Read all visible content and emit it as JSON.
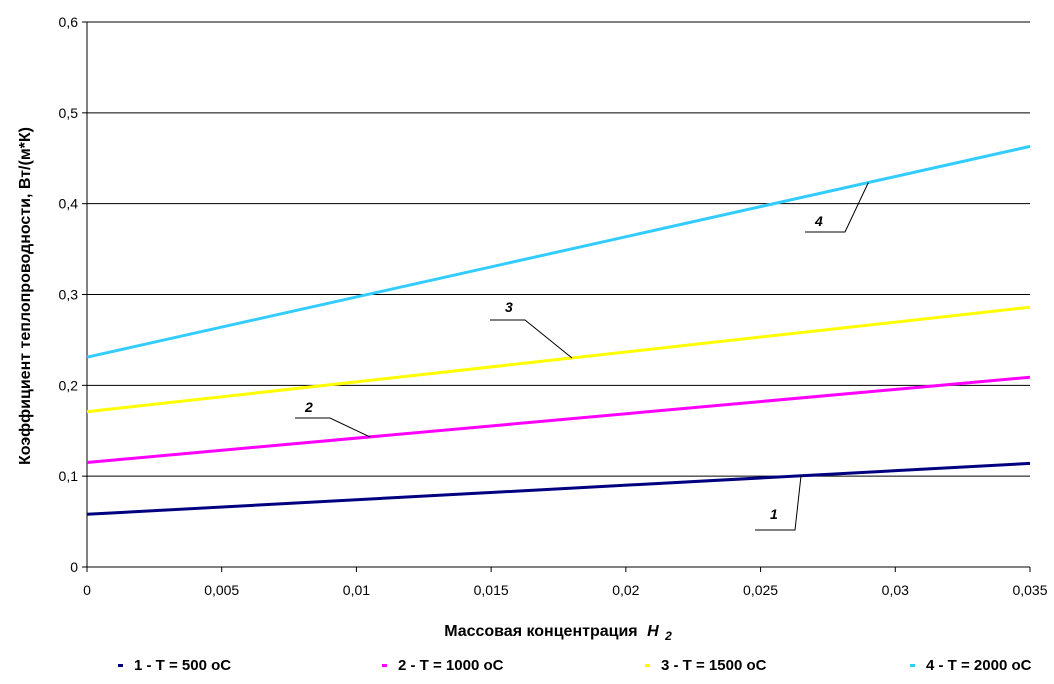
{
  "chart_data": {
    "type": "line",
    "title": "",
    "xlabel": "Массовая концентрация",
    "xlabel_var": "H",
    "xlabel_sub": "2",
    "ylabel": "Коэффициент теплопроводности, Вт/(м*К)",
    "xlim": [
      0,
      0.035
    ],
    "ylim": [
      0,
      0.6
    ],
    "x_ticks": [
      "0",
      "0,005",
      "0,01",
      "0,015",
      "0,02",
      "0,025",
      "0,03",
      "0,035"
    ],
    "x_tick_values": [
      0,
      0.005,
      0.01,
      0.015,
      0.02,
      0.025,
      0.03,
      0.035
    ],
    "y_ticks": [
      "0",
      "0,1",
      "0,2",
      "0,3",
      "0,4",
      "0,5",
      "0,6"
    ],
    "y_tick_values": [
      0,
      0.1,
      0.2,
      0.3,
      0.4,
      0.5,
      0.6
    ],
    "grid": "horizontal",
    "legend_position": "bottom",
    "series": [
      {
        "name": "1 - T = 500 oC",
        "callout": "1",
        "color": "#000080",
        "x": [
          0,
          0.035
        ],
        "y": [
          0.058,
          0.114
        ]
      },
      {
        "name": "2 - T = 1000 oC",
        "callout": "2",
        "color": "#ff00ff",
        "x": [
          0,
          0.035
        ],
        "y": [
          0.115,
          0.209
        ]
      },
      {
        "name": "3 - T = 1500 oC",
        "callout": "3",
        "color": "#ffff00",
        "x": [
          0,
          0.035
        ],
        "y": [
          0.171,
          0.286
        ]
      },
      {
        "name": "4 - T = 2000 oC",
        "callout": "4",
        "color": "#33ccff",
        "x": [
          0,
          0.035
        ],
        "y": [
          0.231,
          0.463
        ]
      }
    ]
  }
}
